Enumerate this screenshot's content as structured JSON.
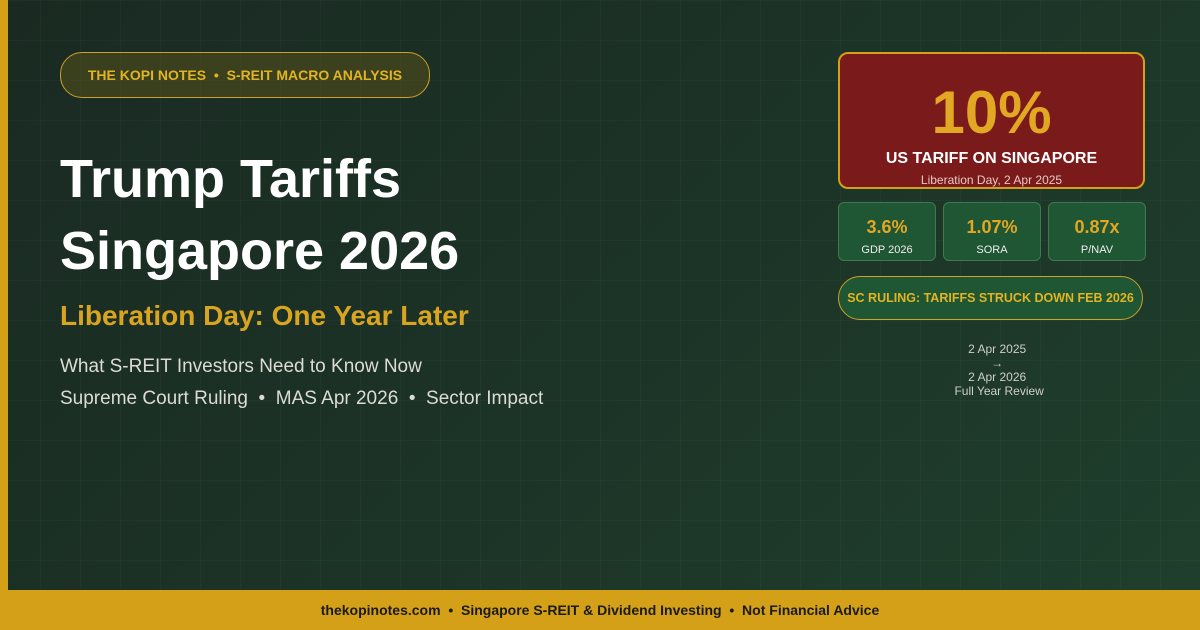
{
  "badge": "THE KOPI NOTES  •  S-REIT MACRO ANALYSIS",
  "title": [
    "Trump Tariffs",
    "Singapore 2026"
  ],
  "subtitle": "Liberation Day: One Year Later",
  "lines": [
    "What S-REIT Investors Need to Know Now",
    "Supreme Court Ruling  •  MAS Apr 2026  •  Sector Impact"
  ],
  "highlight": {
    "value": "10%",
    "label": "US TARIFF ON SINGAPORE",
    "note": "Liberation Day, 2 Apr 2025"
  },
  "stats": [
    {
      "value": "3.6%",
      "label": "GDP 2026"
    },
    {
      "value": "1.07%",
      "label": "SORA"
    },
    {
      "value": "0.87x",
      "label": "P/NAV"
    }
  ],
  "ruling": "SC RULING: TARIFFS STRUCK DOWN FEB 2026",
  "timeline": {
    "from": "2 Apr 2025",
    "arrow": "→",
    "to": "2 Apr 2026",
    "note": "Full Year Review"
  },
  "footer": "thekopinotes.com  •  Singapore S-REIT & Dividend Investing  •  Not Financial Advice"
}
